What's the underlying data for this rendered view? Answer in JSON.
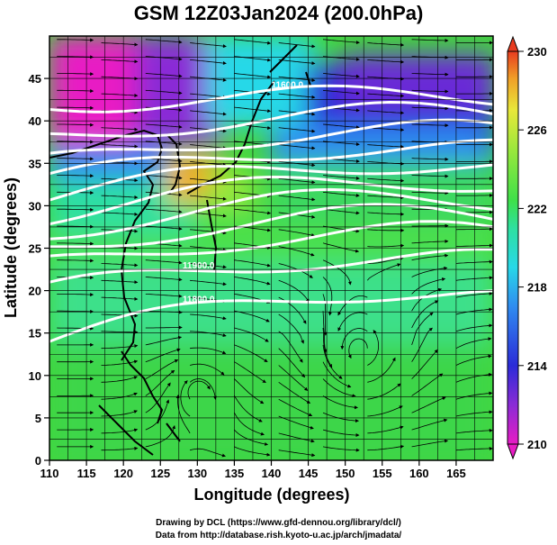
{
  "title": "GSM 12Z03Jan2024 (200.0hPa)",
  "xlabel": "Longitude (degrees)",
  "ylabel": "Latitude  (degrees)",
  "credit_line1": "Drawing by DCL (https://www.gfd-dennou.org/library/dcl/)",
  "credit_line2": "Data from http://database.rish.kyoto-u.ac.jp/arch/jmadata/",
  "chart_data": {
    "type": "heatmap",
    "description_kind": "temperature shading with streamlines and geopotential contours",
    "x_ticks": [
      110,
      115,
      120,
      125,
      130,
      135,
      140,
      145,
      150,
      155,
      160,
      165
    ],
    "y_ticks": [
      0,
      5,
      10,
      15,
      20,
      25,
      30,
      35,
      40,
      45
    ],
    "xlim": [
      110,
      170
    ],
    "ylim": [
      0,
      50
    ],
    "colorbar": {
      "ticks": [
        210,
        214,
        218,
        222,
        226,
        230
      ],
      "range": [
        210,
        230
      ],
      "colors": [
        "#e81cc4",
        "#8a2bd6",
        "#2b2bd8",
        "#2f8cf0",
        "#28d8e8",
        "#2ee0a0",
        "#3ee04a",
        "#9be83c",
        "#e8e83a",
        "#f0a028",
        "#e83c20"
      ]
    },
    "contours": [
      {
        "label": "11800.0",
        "lat_west": 14,
        "lat_east": 20
      },
      {
        "label": "11900.0",
        "lat_west": 20,
        "lat_east": 24
      },
      {
        "label": "",
        "lat_west": 23,
        "lat_east": 27
      },
      {
        "label": "",
        "lat_west": 25,
        "lat_east": 29
      },
      {
        "label": "",
        "lat_west": 27,
        "lat_east": 31
      },
      {
        "label": "",
        "lat_west": 29,
        "lat_east": 33
      },
      {
        "label": "",
        "lat_west": 31,
        "lat_east": 35
      },
      {
        "label": "",
        "lat_west": 33,
        "lat_east": 37
      },
      {
        "label": "",
        "lat_west": 35,
        "lat_east": 39
      },
      {
        "label": "",
        "lat_west": 38,
        "lat_east": 41
      },
      {
        "label": "11600.0",
        "lat_west": 42,
        "lat_east": 43
      }
    ],
    "contour_labels_printed": [
      "11600.0",
      "11800.0",
      "11900.0"
    ]
  }
}
